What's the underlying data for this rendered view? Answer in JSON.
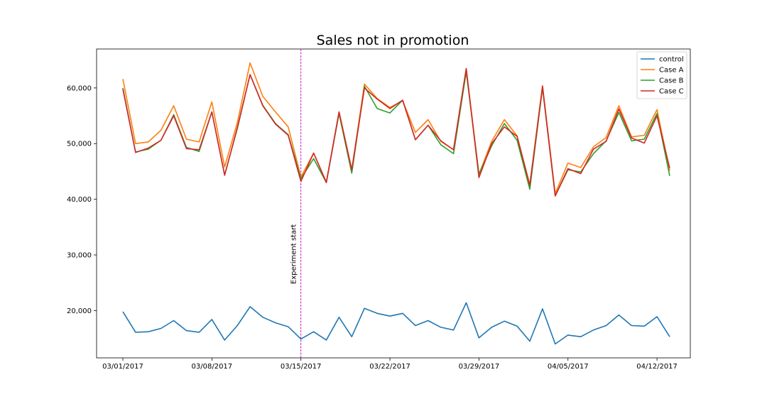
{
  "chart_data": {
    "type": "line",
    "title": "Sales not in promotion",
    "xlabel": "",
    "ylabel": "",
    "x_start": "03/01/2017",
    "x": [
      "03/01/2017",
      "03/02/2017",
      "03/03/2017",
      "03/04/2017",
      "03/05/2017",
      "03/06/2017",
      "03/07/2017",
      "03/08/2017",
      "03/09/2017",
      "03/10/2017",
      "03/11/2017",
      "03/12/2017",
      "03/13/2017",
      "03/14/2017",
      "03/15/2017",
      "03/16/2017",
      "03/17/2017",
      "03/18/2017",
      "03/19/2017",
      "03/20/2017",
      "03/21/2017",
      "03/22/2017",
      "03/23/2017",
      "03/24/2017",
      "03/25/2017",
      "03/26/2017",
      "03/27/2017",
      "03/28/2017",
      "03/29/2017",
      "03/30/2017",
      "03/31/2017",
      "04/01/2017",
      "04/02/2017",
      "04/03/2017",
      "04/04/2017",
      "04/05/2017",
      "04/06/2017",
      "04/07/2017",
      "04/08/2017",
      "04/09/2017",
      "04/10/2017",
      "04/11/2017",
      "04/12/2017",
      "04/13/2017"
    ],
    "x_ticks": [
      "03/01/2017",
      "03/08/2017",
      "03/15/2017",
      "03/22/2017",
      "03/29/2017",
      "04/05/2017",
      "04/12/2017"
    ],
    "y_ticks": [
      "20,000",
      "30,000",
      "40,000",
      "50,000",
      "60,000"
    ],
    "y_tick_values": [
      20000,
      30000,
      40000,
      50000,
      60000
    ],
    "ylim": [
      11500,
      67000
    ],
    "legend_position": "top-right",
    "series": [
      {
        "name": "control",
        "color": "#1f77b4",
        "values": [
          19800,
          16100,
          16200,
          16800,
          18200,
          16400,
          16100,
          18400,
          14700,
          17300,
          20700,
          18800,
          17800,
          17100,
          14900,
          16200,
          14700,
          18800,
          15300,
          20400,
          19500,
          19000,
          19500,
          17300,
          18200,
          17000,
          16500,
          21400,
          15100,
          17000,
          18100,
          17200,
          14500,
          20300,
          14000,
          15600,
          15300,
          16500,
          17300,
          19200,
          17300,
          17200,
          18900,
          15300
        ]
      },
      {
        "name": "Case A",
        "color": "#ff7f0e",
        "values": [
          61600,
          50000,
          50300,
          52400,
          56800,
          50800,
          50300,
          57500,
          45800,
          53800,
          64500,
          58500,
          55700,
          53000,
          44000,
          48300,
          43100,
          55700,
          45300,
          60700,
          58100,
          56500,
          57700,
          52000,
          54300,
          50400,
          48900,
          63400,
          44500,
          50400,
          54300,
          51400,
          42600,
          60400,
          41000,
          46500,
          45700,
          49400,
          51100,
          56800,
          51200,
          51500,
          56100,
          45100
        ]
      },
      {
        "name": "Case B",
        "color": "#2ca02c",
        "values": [
          60000,
          48500,
          49000,
          50600,
          55200,
          49300,
          48600,
          55700,
          44400,
          52700,
          62400,
          56900,
          53600,
          51600,
          43700,
          47300,
          43000,
          55400,
          44700,
          60300,
          56300,
          55500,
          57800,
          50700,
          53300,
          49800,
          48200,
          62900,
          44500,
          49600,
          53600,
          50600,
          41800,
          60000,
          40600,
          45300,
          44900,
          48200,
          50500,
          55600,
          50500,
          50800,
          55400,
          44200
        ]
      },
      {
        "name": "Case C",
        "color": "#d62728",
        "values": [
          59800,
          48400,
          49200,
          50600,
          55000,
          49100,
          48900,
          55700,
          44300,
          52900,
          62400,
          56800,
          53500,
          51500,
          43200,
          48300,
          43000,
          55700,
          45300,
          60000,
          58000,
          56300,
          57800,
          50700,
          53300,
          50500,
          48900,
          63500,
          43900,
          50000,
          53000,
          51300,
          42500,
          60300,
          40600,
          45500,
          44600,
          49000,
          50400,
          56200,
          51000,
          50100,
          55000,
          45600
        ]
      }
    ],
    "annotations": [
      {
        "text": "Experiment start",
        "x": "03/15/2017",
        "style": "vertical dashed line",
        "color": "#bf00bf"
      }
    ]
  }
}
